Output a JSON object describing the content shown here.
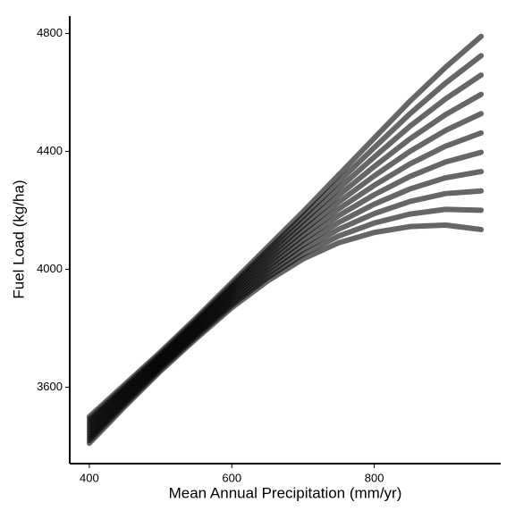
{
  "chart_data": {
    "type": "line",
    "xlabel": "Mean Annual Precipitation (mm/yr)",
    "ylabel": "Fuel Load (kg/ha)",
    "x": [
      400,
      450,
      500,
      550,
      600,
      650,
      700,
      750,
      800,
      850,
      900,
      950
    ],
    "xlim": [
      372.5,
      977.5
    ],
    "xticks": [
      400,
      600,
      800
    ],
    "ylim": [
      3341,
      4859
    ],
    "yticks": [
      3600,
      4000,
      4400,
      4800
    ],
    "grid": false,
    "series": [
      {
        "color": "#000000",
        "values": [
          3410,
          3535,
          3655,
          3765,
          3870,
          3960,
          4035,
          4090,
          4125,
          4145,
          4150,
          4135
        ]
      },
      {
        "color": "#000000",
        "values": [
          3419,
          3542.5,
          3661.5,
          3772,
          3878.5,
          3971.5,
          4051,
          4113,
          4157,
          4187.5,
          4203.5,
          4200.5
        ]
      },
      {
        "color": "#000000",
        "values": [
          3428,
          3550,
          3668,
          3779,
          3887,
          3983,
          4067,
          4136,
          4189,
          4230,
          4257,
          4266
        ]
      },
      {
        "color": "#000000",
        "values": [
          3437,
          3557.5,
          3674.5,
          3786,
          3895.5,
          3994.5,
          4083,
          4159,
          4221,
          4272.5,
          4310.5,
          4331.5
        ]
      },
      {
        "color": "#000000",
        "values": [
          3446,
          3565,
          3681,
          3793,
          3904,
          4006,
          4099,
          4182,
          4253,
          4315,
          4364,
          4397
        ]
      },
      {
        "color": "#000000",
        "values": [
          3455,
          3572.5,
          3687.5,
          3800,
          3912.5,
          4017.5,
          4115,
          4205,
          4285,
          4357.5,
          4417.5,
          4462.5
        ]
      },
      {
        "color": "#000000",
        "values": [
          3464,
          3580,
          3694,
          3807,
          3921,
          4029,
          4131,
          4228,
          4317,
          4400,
          4471,
          4528
        ]
      },
      {
        "color": "#000000",
        "values": [
          3473,
          3587.5,
          3700.5,
          3814,
          3929.5,
          4040.5,
          4147,
          4251,
          4349,
          4442.5,
          4524.5,
          4593.5
        ]
      },
      {
        "color": "#000000",
        "values": [
          3482,
          3595,
          3707,
          3821,
          3938,
          4052,
          4163,
          4274,
          4381,
          4485,
          4578,
          4659
        ]
      },
      {
        "color": "#000000",
        "values": [
          3491,
          3602.5,
          3713.5,
          3828,
          3946.5,
          4063.5,
          4179,
          4297,
          4413,
          4527.5,
          4631.5,
          4724.5
        ]
      },
      {
        "color": "#000000",
        "values": [
          3500,
          3610,
          3720,
          3835,
          3955,
          4075,
          4195,
          4320,
          4445,
          4570,
          4685,
          4790
        ]
      }
    ]
  }
}
